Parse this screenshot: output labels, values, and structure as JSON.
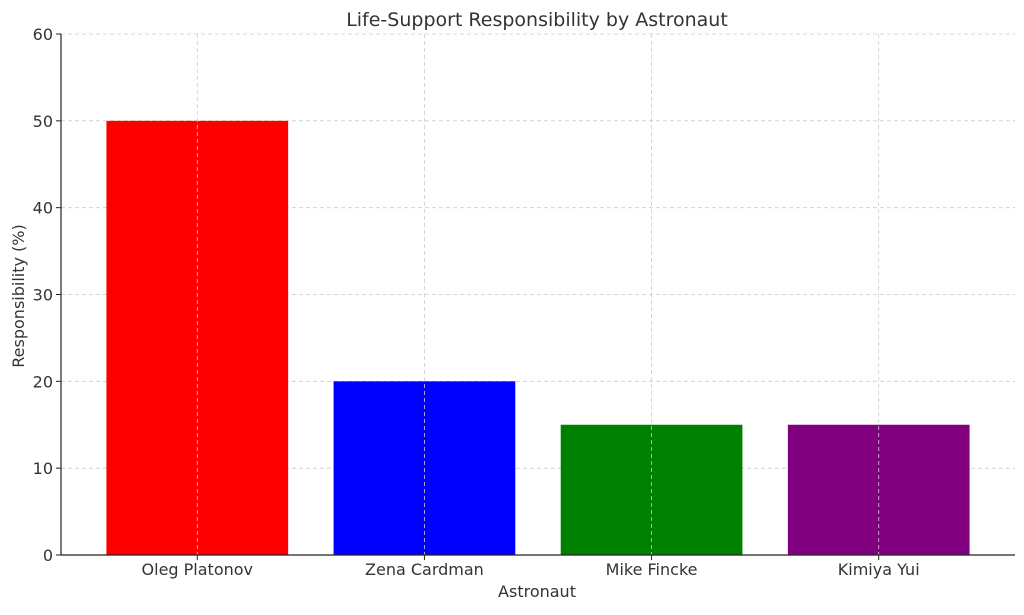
{
  "chart_data": {
    "type": "bar",
    "title": "Life-Support Responsibility by Astronaut",
    "xlabel": "Astronaut",
    "ylabel": "Responsibility (%)",
    "categories": [
      "Oleg Platonov",
      "Zena Cardman",
      "Mike Fincke",
      "Kimiya Yui"
    ],
    "values": [
      50,
      20,
      15,
      15
    ],
    "colors": [
      "#ff0000",
      "#0000ff",
      "#008000",
      "#800080"
    ],
    "ylim": [
      0,
      60
    ],
    "yticks": [
      0,
      10,
      20,
      30,
      40,
      50,
      60
    ],
    "grid": true,
    "legend": "none"
  }
}
